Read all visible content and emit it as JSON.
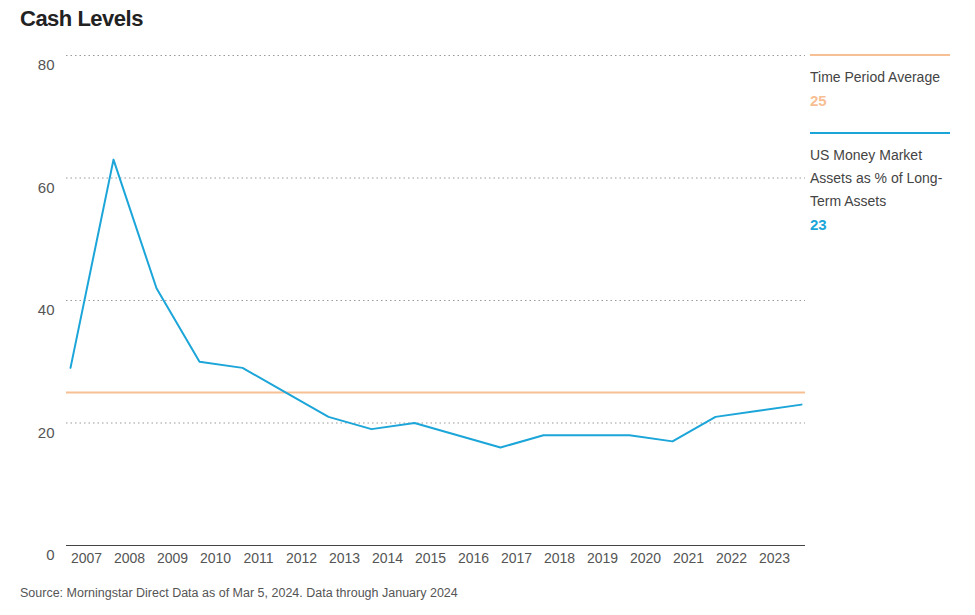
{
  "chart_data": {
    "type": "line",
    "title": "Cash Levels",
    "caption": "Source: Morningstar Direct Data as of Mar 5, 2024. Data through January 2024",
    "categories": [
      "2007",
      "2008",
      "2009",
      "2010",
      "2011",
      "2012",
      "2013",
      "2014",
      "2015",
      "2016",
      "2017",
      "2018",
      "2019",
      "2020",
      "2021",
      "2022",
      "2023",
      null
    ],
    "series": [
      {
        "name": "Time Period Average",
        "color": "#f7bf94",
        "type": "rule",
        "values": [
          25,
          25,
          25,
          25,
          25,
          25,
          25,
          25,
          25,
          25,
          25,
          25,
          25,
          25,
          25,
          25,
          25,
          25
        ]
      },
      {
        "name": "US Money Market Assets as % of Long-Term Assets",
        "color": "#1ba5d8",
        "type": "line",
        "values": [
          29,
          63,
          42,
          30,
          29,
          25,
          21,
          19,
          20,
          18,
          16,
          18,
          18,
          18,
          17,
          21,
          22,
          23
        ]
      }
    ],
    "ylim": [
      0,
      80
    ],
    "yticks": [
      0,
      20,
      40,
      60,
      80
    ],
    "grid": true,
    "legend": "right"
  }
}
